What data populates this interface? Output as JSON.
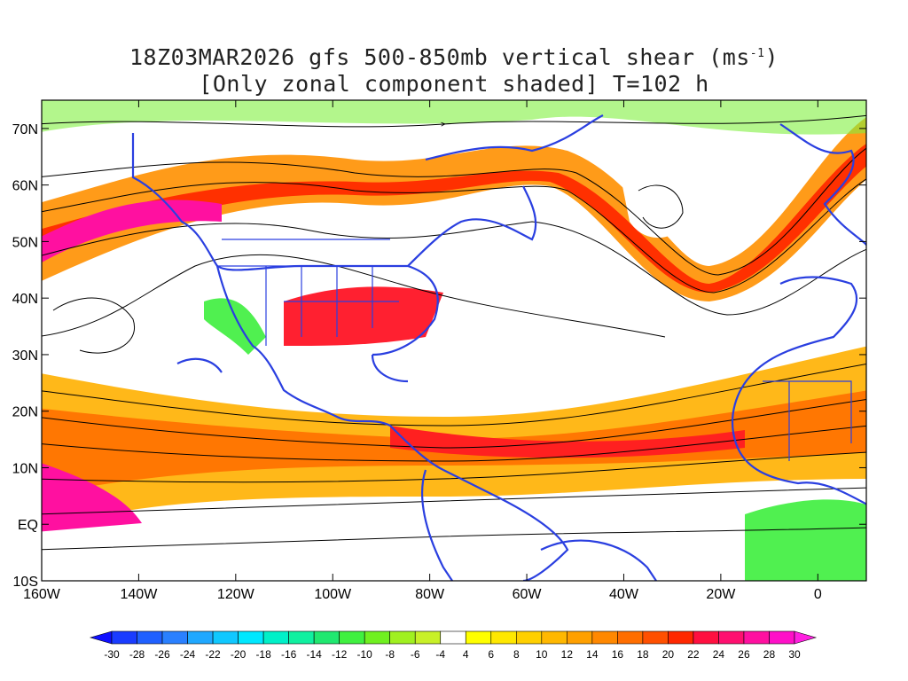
{
  "title": {
    "line1_prefix": "18Z03MAR2026 gfs 500-850mb vertical shear (ms",
    "line1_sup": "-1",
    "line1_suffix": ")",
    "line2": "[Only zonal component shaded] T=102 h"
  },
  "map": {
    "lon_range": [
      -160,
      10
    ],
    "lat_range": [
      -10,
      75
    ],
    "x_tick_values": [
      -160,
      -140,
      -120,
      -100,
      -80,
      -60,
      -40,
      -20,
      0
    ],
    "x_tick_labels": [
      "160W",
      "140W",
      "120W",
      "100W",
      "80W",
      "60W",
      "40W",
      "20W",
      "0"
    ],
    "y_tick_values": [
      70,
      60,
      50,
      40,
      30,
      20,
      10,
      0,
      -10
    ],
    "y_tick_labels": [
      "70N",
      "60N",
      "50N",
      "40N",
      "30N",
      "20N",
      "10N",
      "EQ",
      "10S"
    ],
    "coastline_color": "#2a3fe0",
    "streamline_color": "#000000"
  },
  "colorbar": {
    "tick_labels": [
      "-30",
      "-28",
      "-26",
      "-24",
      "-22",
      "-20",
      "-18",
      "-16",
      "-14",
      "-12",
      "-10",
      "-8",
      "-6",
      "-4",
      "4",
      "6",
      "8",
      "10",
      "12",
      "14",
      "16",
      "18",
      "20",
      "22",
      "24",
      "26",
      "28",
      "30"
    ],
    "colors": [
      "#1010ff",
      "#1a3cff",
      "#2060ff",
      "#2a80ff",
      "#20a8ff",
      "#10c8ff",
      "#00e8ff",
      "#00f0c8",
      "#10f0a0",
      "#20e870",
      "#40f040",
      "#70f020",
      "#a0f020",
      "#c8f028",
      "#ffffff",
      "#ffff00",
      "#ffe800",
      "#ffd000",
      "#ffb800",
      "#ffa000",
      "#ff8800",
      "#ff6e00",
      "#ff5000",
      "#ff2800",
      "#ff1040",
      "#ff1070",
      "#ff10a0",
      "#ff10c8",
      "#ff20e0"
    ]
  }
}
